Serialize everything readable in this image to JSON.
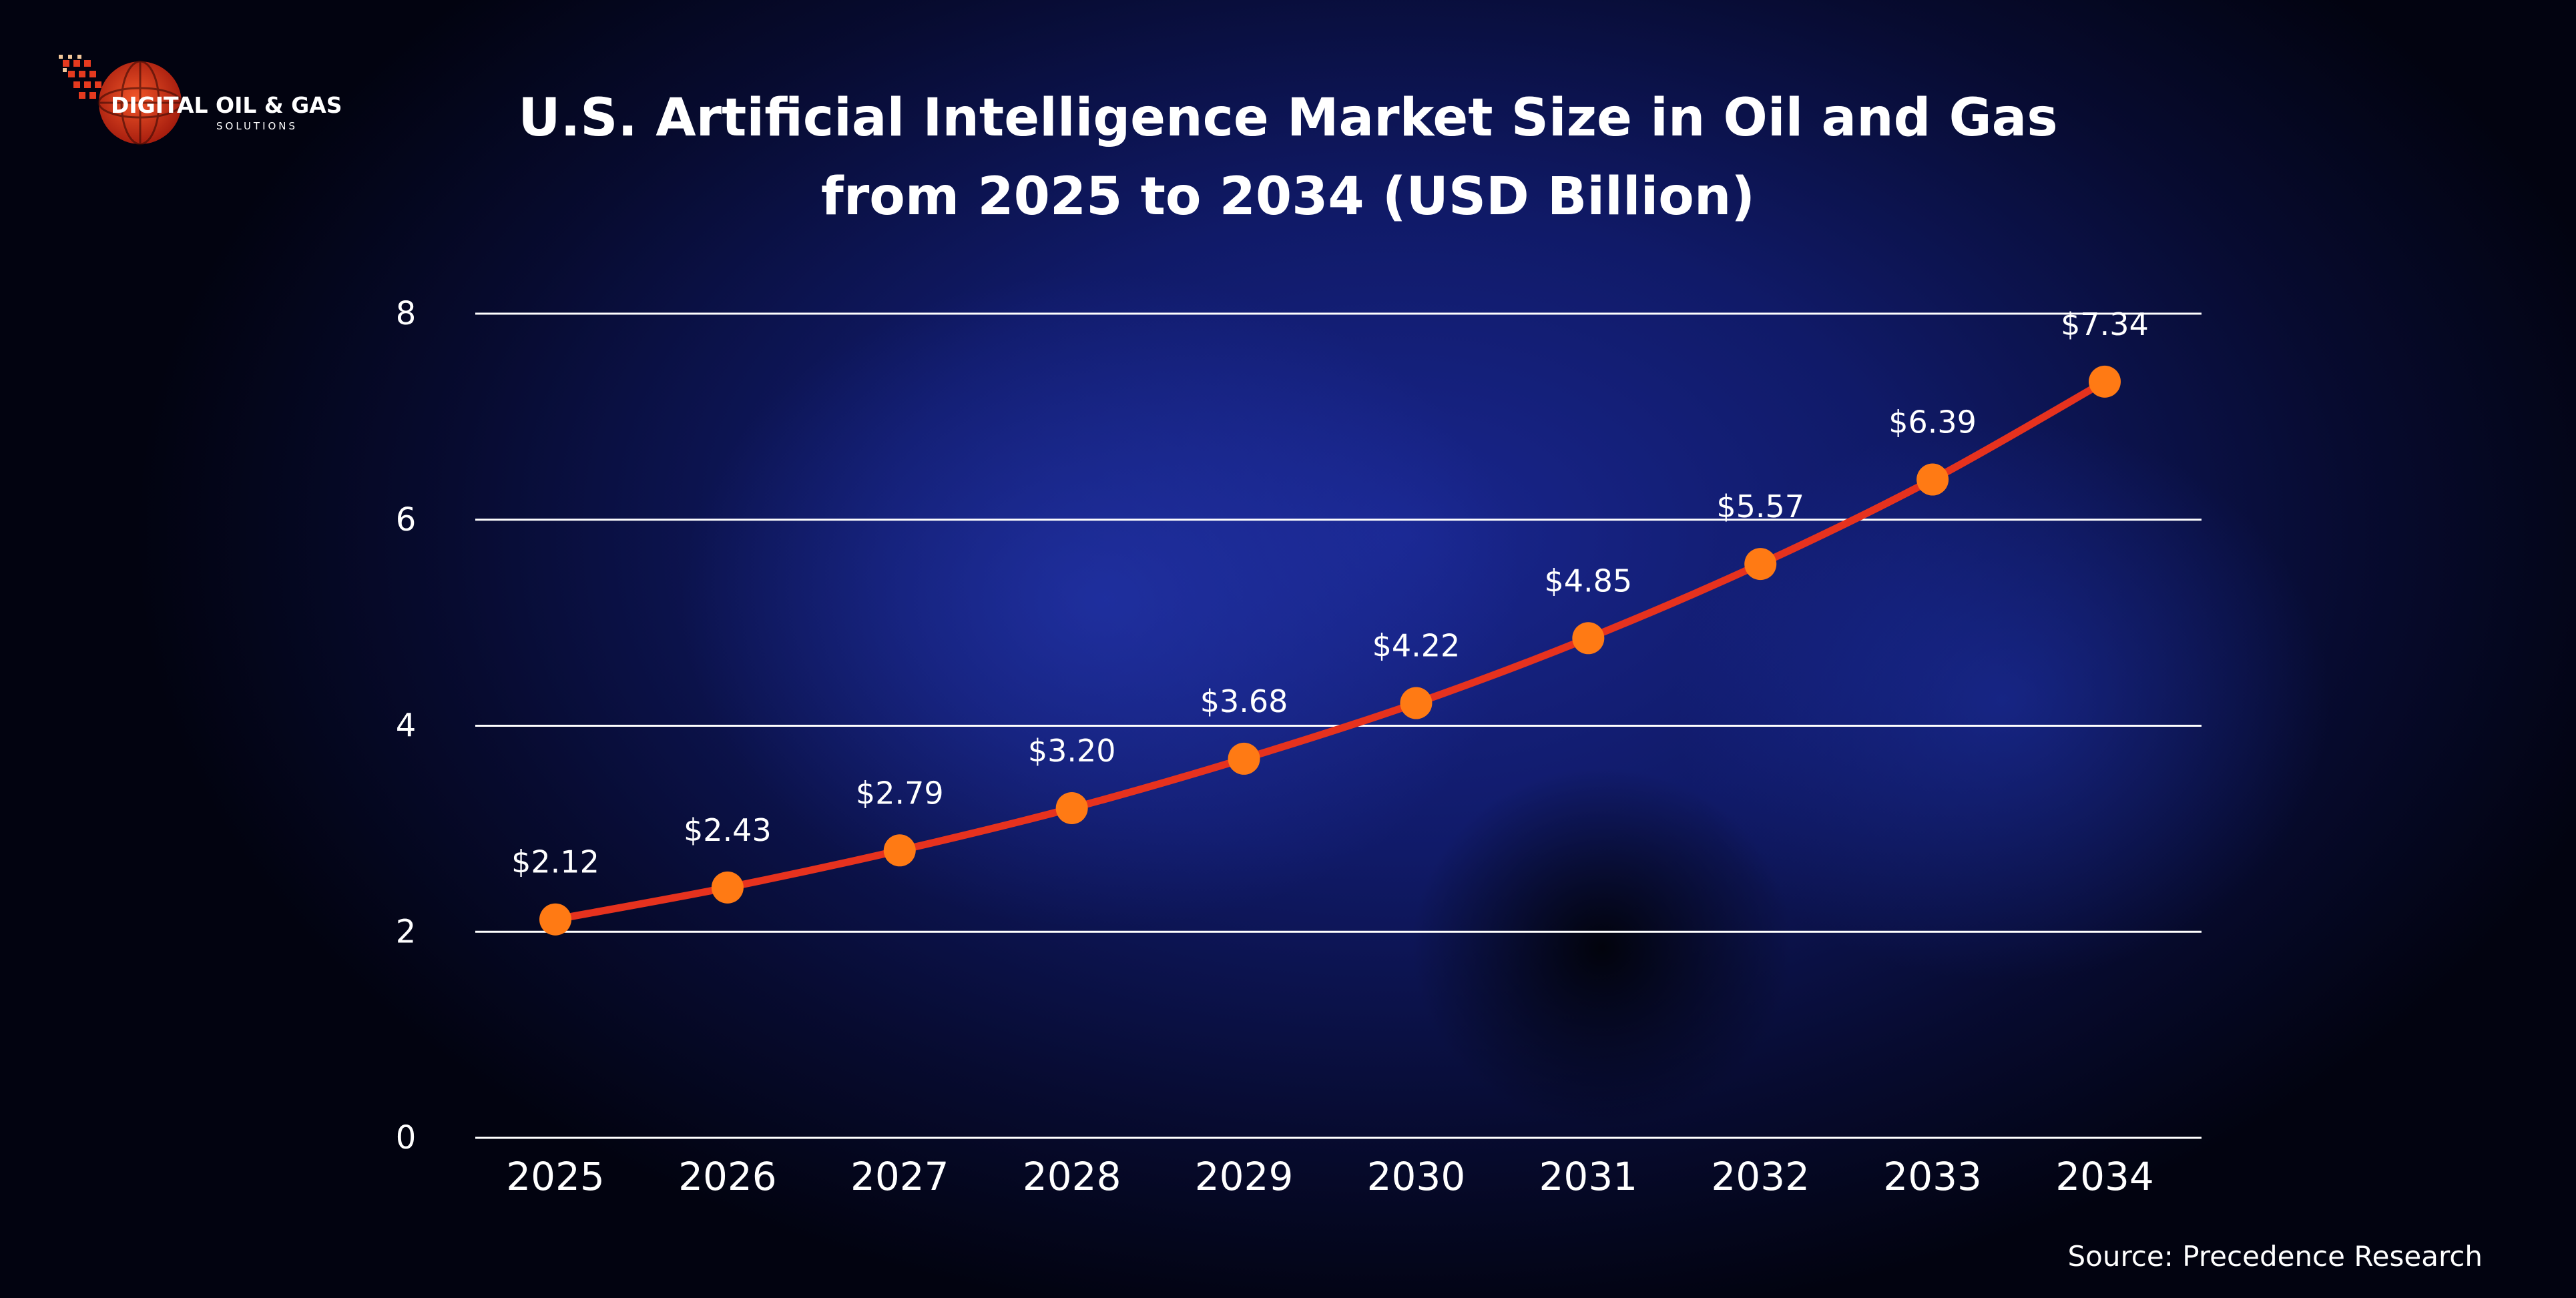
{
  "logo": {
    "name": "DIGITAL OIL & GAS",
    "sub": "SOLUTIONS"
  },
  "title_lines": [
    "U.S. Artificial Intelligence Market Size in Oil and Gas",
    "from 2025 to 2034 (USD Billion)"
  ],
  "source": "Source: Precedence Research",
  "colors": {
    "line": "#e6321e",
    "marker": "#ff7a14",
    "grid": "#ffffff",
    "text": "#ffffff",
    "logo_red": "#e53a1f"
  },
  "chart_data": {
    "type": "line",
    "title": "U.S. Artificial Intelligence Market Size in Oil and Gas from 2025 to 2034 (USD Billion)",
    "x": [
      "2025",
      "2026",
      "2027",
      "2028",
      "2029",
      "2030",
      "2031",
      "2032",
      "2033",
      "2034"
    ],
    "series": [
      {
        "values": [
          2.12,
          2.43,
          2.79,
          3.2,
          3.68,
          4.22,
          4.85,
          5.57,
          6.39,
          7.34
        ],
        "labels": [
          "$2.12",
          "$2.43",
          "$2.79",
          "$3.20",
          "$3.68",
          "$4.22",
          "$4.85",
          "$5.57",
          "$6.39",
          "$7.34"
        ]
      }
    ],
    "ylim": [
      0,
      8
    ],
    "yticks": [
      "0",
      "2",
      "4",
      "6",
      "8"
    ],
    "ytick_values": [
      0,
      2,
      4,
      6,
      8
    ],
    "grid": true,
    "legend": "none",
    "xlabel": "",
    "ylabel": ""
  }
}
